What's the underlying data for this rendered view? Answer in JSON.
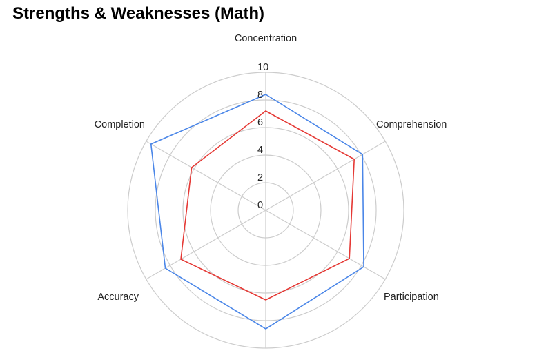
{
  "chart_data": {
    "type": "radar",
    "title": "Strengths & Weaknesses (Math)",
    "axes": [
      "Concentration",
      "Comprehension",
      "Participation",
      "Accuracy",
      "Completion"
    ],
    "r_ticks": [
      0,
      2,
      4,
      6,
      8,
      10
    ],
    "r_range": [
      0,
      10
    ],
    "grid": true,
    "legend": "none",
    "axes_sequence": [
      "Concentration",
      "Comprehension",
      "Participation",
      "Participation",
      "Accuracy",
      "Accuracy",
      "Completion"
    ],
    "series": [
      {
        "color": "#4a86e8",
        "values": [
          8,
          8,
          8,
          8.5,
          8.5,
          8,
          9.5
        ]
      },
      {
        "color": "#e53935",
        "values": [
          6.7,
          7,
          7,
          6.5,
          7,
          7,
          6
        ]
      }
    ],
    "note_axes_sequence": "spokes drawn at angles matching the image"
  }
}
